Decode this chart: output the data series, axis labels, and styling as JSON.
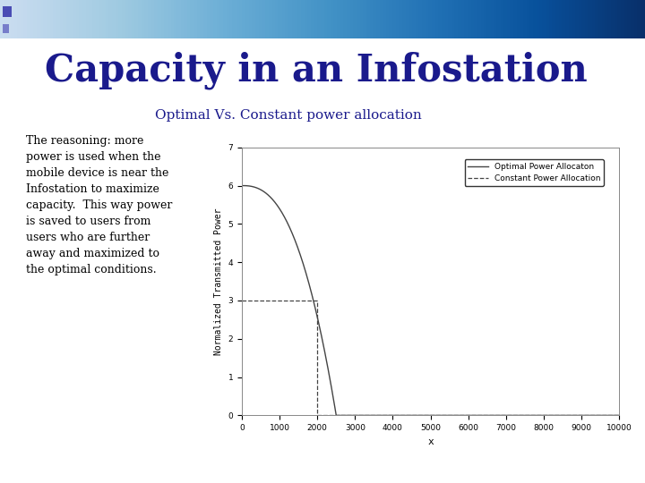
{
  "title": "Capacity in an Infostation",
  "subtitle": "Optimal Vs. Constant power allocation",
  "body_text": "The reasoning: more\npower is used when the\nmobile device is near the\nInfostation to maximize\ncapacity.  This way power\nis saved to users from\nusers who are further\naway and maximized to\nthe optimal conditions.",
  "xlabel": "x",
  "ylabel": "Normalized Transmitted Power",
  "xlim": [
    0,
    10000
  ],
  "ylim": [
    0,
    7
  ],
  "xticks": [
    0,
    1000,
    2000,
    3000,
    4000,
    5000,
    6000,
    7000,
    8000,
    9000,
    10000
  ],
  "yticks": [
    0,
    1,
    2,
    3,
    4,
    5,
    6,
    7
  ],
  "legend_labels": [
    "Optimal Power Allocaton",
    "Constant Power Allocation"
  ],
  "line_color": "#444444",
  "bg_color": "#ffffff",
  "slide_bg": "#ffffff",
  "title_color": "#1a1a8c",
  "subtitle_color": "#1a1a8c",
  "body_color": "#000000",
  "optimal_x_cutoff": 2500,
  "constant_level": 3.0,
  "constant_x_cutoff": 2000,
  "optimal_start": 6.0,
  "optimal_alpha": 2.5
}
